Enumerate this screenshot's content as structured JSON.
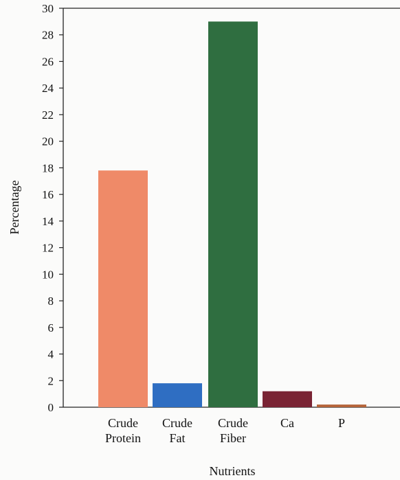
{
  "chart_data": {
    "type": "bar",
    "categories": [
      [
        "Crude",
        "Protein"
      ],
      [
        "Crude",
        "Fat"
      ],
      [
        "Crude",
        "Fiber"
      ],
      [
        "Ca"
      ],
      [
        "P"
      ]
    ],
    "values": [
      17.8,
      1.8,
      29.0,
      1.2,
      0.2
    ],
    "colors": [
      "#ef8a68",
      "#2f6ec2",
      "#2f6e40",
      "#7a2434",
      "#b5643a"
    ],
    "xlabel": "Nutrients",
    "ylabel": "Percentage",
    "ylim": [
      0,
      30
    ],
    "yticks": [
      0,
      2,
      4,
      6,
      8,
      10,
      12,
      14,
      16,
      18,
      20,
      22,
      24,
      26,
      28,
      30
    ],
    "grid": false,
    "legend": "none"
  }
}
